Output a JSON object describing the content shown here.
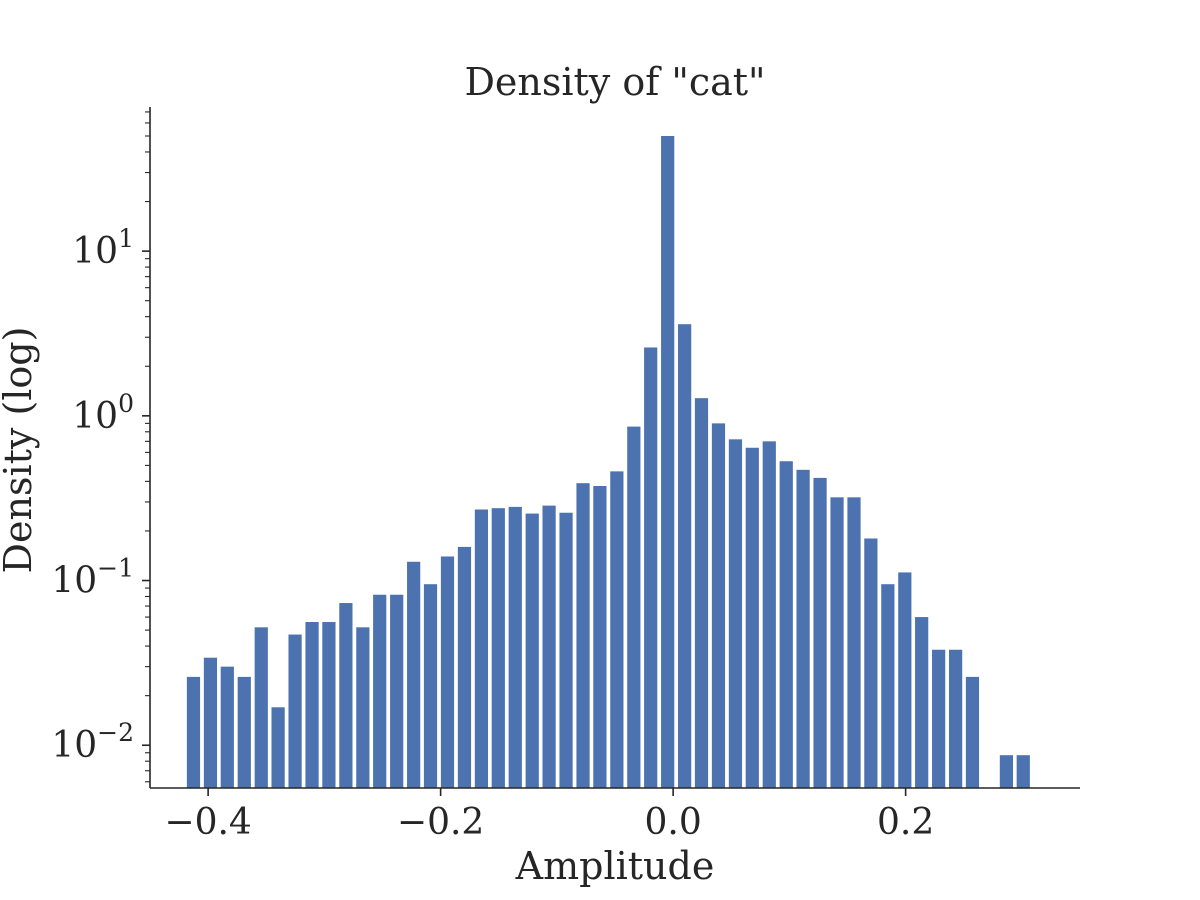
{
  "chart_data": {
    "type": "bar",
    "title": "Density of \"cat\"",
    "xlabel": "Amplitude",
    "ylabel": "Density (log)",
    "yscale": "log",
    "xlim": [
      -0.45,
      0.35
    ],
    "ylim": [
      0.0055,
      75
    ],
    "grid": false,
    "bar_color": "#4c72b0",
    "x_ticks": [
      {
        "value": -0.4,
        "label": "−0.4"
      },
      {
        "value": -0.2,
        "label": "−0.2"
      },
      {
        "value": 0.0,
        "label": "0.0"
      },
      {
        "value": 0.2,
        "label": "0.2"
      }
    ],
    "y_ticks": [
      {
        "value": 0.01,
        "base": "10",
        "exp": "−2"
      },
      {
        "value": 0.1,
        "base": "10",
        "exp": "−1"
      },
      {
        "value": 1,
        "base": "10",
        "exp": "0"
      },
      {
        "value": 10,
        "base": "10",
        "exp": "1"
      }
    ],
    "bin_width": 0.01457,
    "x": [
      -0.4126,
      -0.398,
      -0.3835,
      -0.3689,
      -0.3543,
      -0.3398,
      -0.3252,
      -0.3106,
      -0.2961,
      -0.2815,
      -0.2669,
      -0.2524,
      -0.2378,
      -0.2232,
      -0.2087,
      -0.1941,
      -0.1795,
      -0.1649,
      -0.1504,
      -0.1358,
      -0.1212,
      -0.1067,
      -0.0921,
      -0.0775,
      -0.063,
      -0.0484,
      -0.0338,
      -0.0193,
      -0.0047,
      0.0099,
      0.0244,
      0.039,
      0.0536,
      0.0681,
      0.0827,
      0.0973,
      0.1118,
      0.1264,
      0.141,
      0.1556,
      0.1701,
      0.1847,
      0.1993,
      0.2138,
      0.2284,
      0.243,
      0.2575,
      0.2721,
      0.2867,
      0.3012
    ],
    "values": [
      0.026,
      0.034,
      0.03,
      0.026,
      0.052,
      0.017,
      0.047,
      0.056,
      0.056,
      0.073,
      0.052,
      0.082,
      0.082,
      0.13,
      0.095,
      0.14,
      0.16,
      0.27,
      0.275,
      0.28,
      0.255,
      0.285,
      0.258,
      0.39,
      0.375,
      0.46,
      0.86,
      2.6,
      50,
      3.6,
      1.28,
      0.9,
      0.72,
      0.64,
      0.7,
      0.53,
      0.47,
      0.42,
      0.32,
      0.32,
      0.18,
      0.095,
      0.112,
      0.06,
      0.038,
      0.038,
      0.026,
      0,
      0.0087,
      0.0087
    ]
  }
}
